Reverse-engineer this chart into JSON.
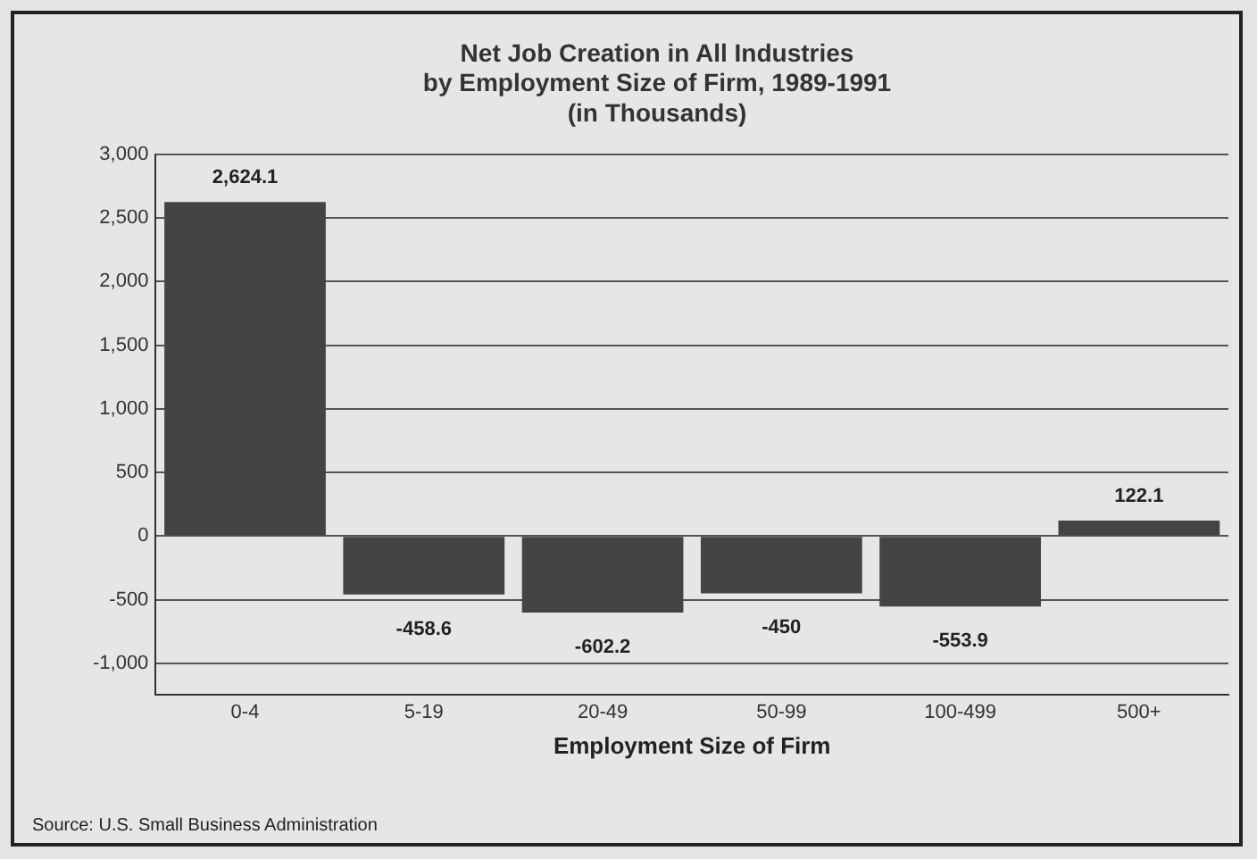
{
  "chart_data": {
    "type": "bar",
    "title": [
      "Net Job Creation in All Industries",
      "by Employment Size of Firm, 1989-1991",
      "(in Thousands)"
    ],
    "xlabel": "Employment Size of Firm",
    "categories": [
      "0-4",
      "5-19",
      "20-49",
      "50-99",
      "100-499",
      "500+"
    ],
    "values": [
      2624.1,
      -458.6,
      -602.2,
      -450,
      -553.9,
      122.1
    ],
    "value_labels": [
      "2,624.1",
      "-458.6",
      "-602.2",
      "-450",
      "-553.9",
      "122.1"
    ],
    "color": "#444444",
    "ylim": [
      -1250,
      3000
    ],
    "yticks": [
      {
        "value": -1000,
        "label": "-1,000"
      },
      -500,
      0,
      500,
      {
        "value": 1000,
        "label": "1,000"
      },
      {
        "value": 1500,
        "label": "1,500"
      },
      {
        "value": 2000,
        "label": "2,000"
      },
      {
        "value": 2500,
        "label": "2,500"
      },
      {
        "value": 3000,
        "label": "3,000"
      }
    ],
    "grid": "y",
    "legend": false,
    "annotations": [
      "Source: U.S. Small Business Administration"
    ]
  }
}
